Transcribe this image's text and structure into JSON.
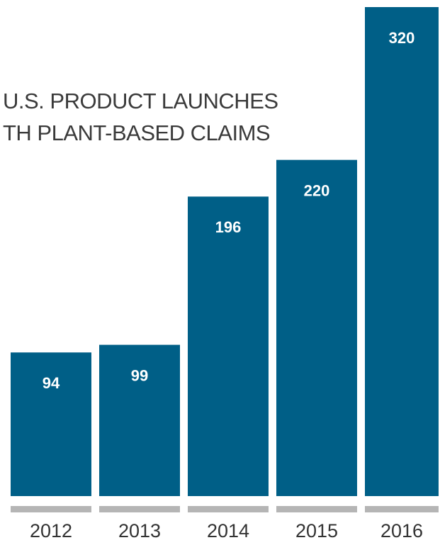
{
  "chart_data": {
    "type": "bar",
    "title": [
      "U.S. PRODUCT LAUNCHES",
      "TH PLANT-BASED CLAIMS"
    ],
    "categories": [
      "2012",
      "2013",
      "2014",
      "2015",
      "2016"
    ],
    "values": [
      94,
      99,
      196,
      220,
      320
    ],
    "color": "#005f87"
  }
}
